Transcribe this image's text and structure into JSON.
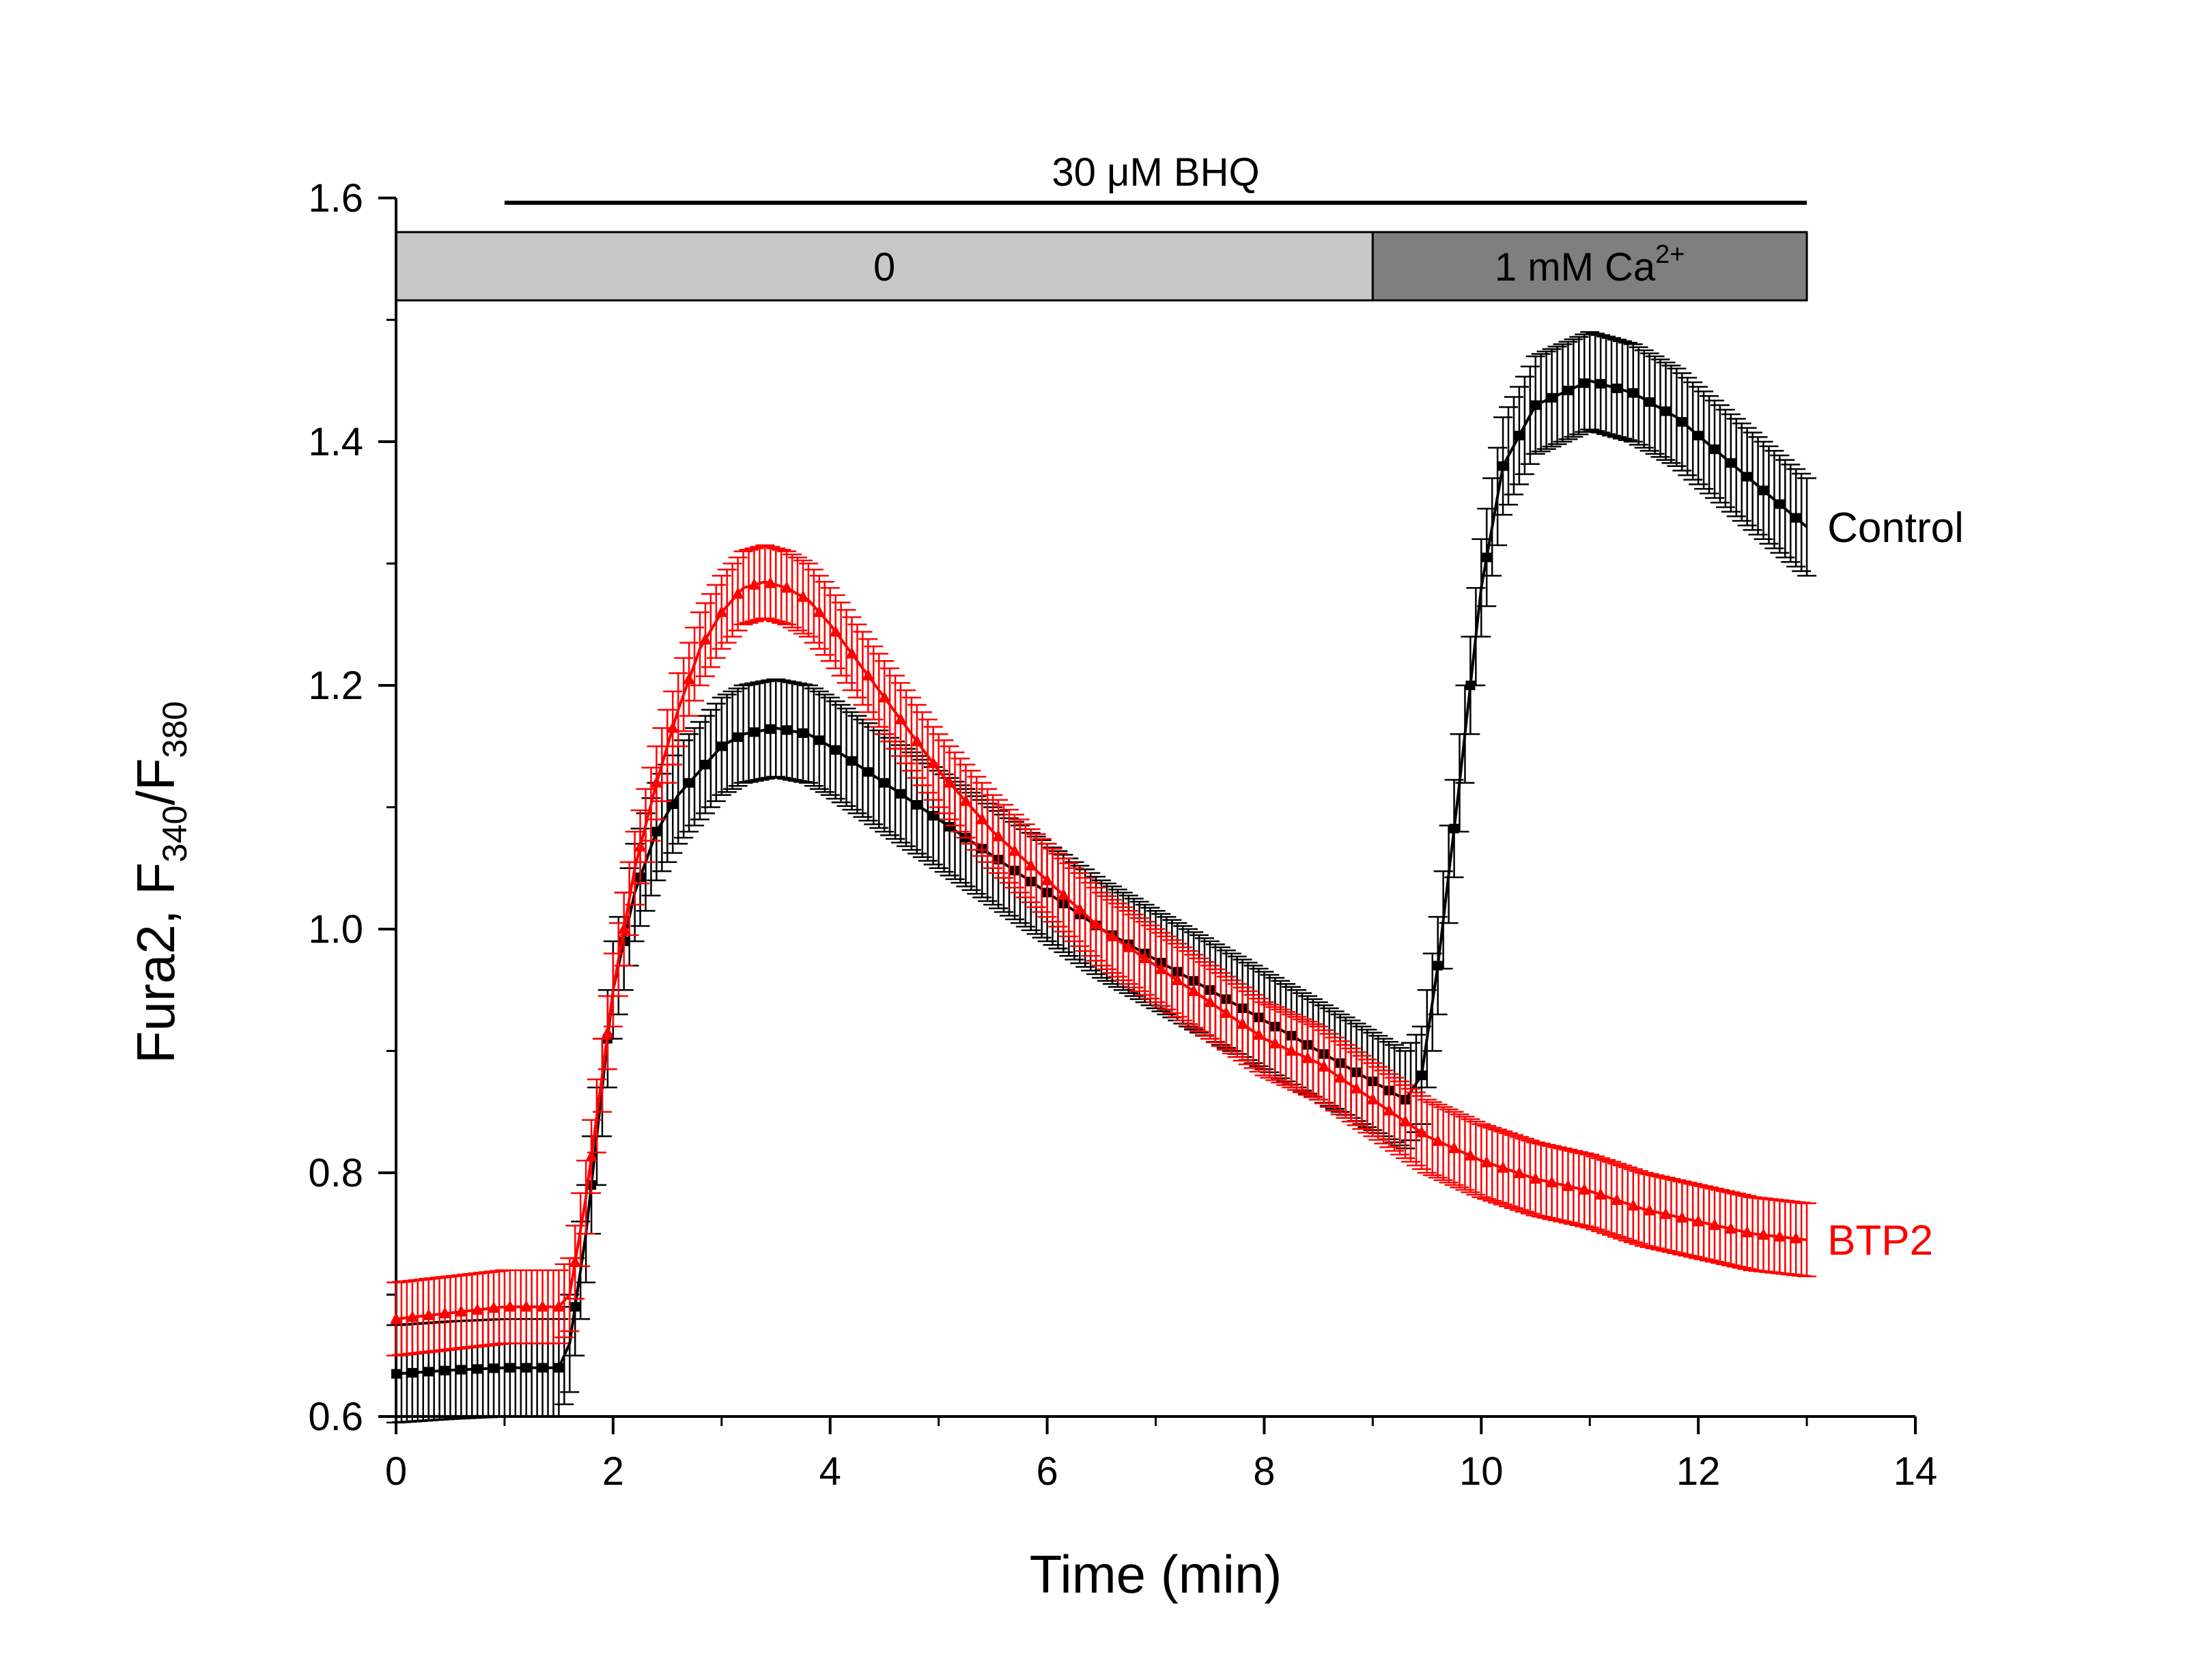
{
  "chart_data": {
    "type": "line",
    "xlabel": "Time (min)",
    "ylabel": {
      "main": "Fura2, F",
      "sub1": "340",
      "mid": "/F",
      "sub2": "380"
    },
    "xlim": [
      0,
      14
    ],
    "ylim": [
      0.6,
      1.6
    ],
    "xticks": [
      "0",
      "2",
      "4",
      "6",
      "8",
      "10",
      "12",
      "14"
    ],
    "yticks": [
      "0.6",
      "0.8",
      "1.0",
      "1.2",
      "1.4",
      "1.6"
    ],
    "grid": false,
    "annotations": {
      "bhq": {
        "label": "30 μM BHQ",
        "x_start": 1,
        "x_end": 13
      },
      "solutions": [
        {
          "label": "0",
          "x_start": 0,
          "x_end": 9,
          "color": "#c8c8c8"
        },
        {
          "label": "1 mM Ca",
          "sup": "2+",
          "x_start": 9,
          "x_end": 13,
          "color": "#7f7f7f"
        }
      ]
    },
    "series": [
      {
        "name": "Control",
        "color": "#000000",
        "marker": "square",
        "anchors": {
          "x": [
            0,
            0.5,
            1.0,
            1.5,
            1.6,
            1.75,
            1.9,
            2.0,
            2.2,
            2.4,
            2.6,
            2.8,
            3.0,
            3.2,
            3.5,
            3.8,
            4.0,
            4.5,
            5.0,
            5.5,
            6.0,
            6.5,
            7.0,
            7.5,
            8.0,
            8.5,
            9.0,
            9.3,
            9.45,
            9.6,
            9.8,
            10.0,
            10.2,
            10.5,
            11.0,
            11.4,
            11.8,
            12.2,
            12.6,
            13.0
          ],
          "y": [
            0.635,
            0.638,
            0.64,
            0.64,
            0.66,
            0.75,
            0.87,
            0.95,
            1.03,
            1.08,
            1.11,
            1.13,
            1.15,
            1.16,
            1.165,
            1.16,
            1.15,
            1.12,
            1.09,
            1.06,
            1.03,
            1.0,
            0.975,
            0.95,
            0.925,
            0.9,
            0.875,
            0.86,
            0.88,
            0.97,
            1.12,
            1.28,
            1.38,
            1.43,
            1.45,
            1.44,
            1.42,
            1.39,
            1.36,
            1.33
          ]
        },
        "error": 0.04
      },
      {
        "name": "BTP2",
        "color": "#ff0000",
        "marker": "triangle",
        "anchors": {
          "x": [
            0,
            0.5,
            1.0,
            1.5,
            1.6,
            1.75,
            1.9,
            2.0,
            2.2,
            2.4,
            2.6,
            2.8,
            3.0,
            3.2,
            3.4,
            3.6,
            3.8,
            4.0,
            4.5,
            5.0,
            5.5,
            6.0,
            6.5,
            7.0,
            7.5,
            8.0,
            8.5,
            9.0,
            9.5,
            10.0,
            10.5,
            11.0,
            11.5,
            12.0,
            12.5,
            13.0
          ],
          "y": [
            0.68,
            0.685,
            0.69,
            0.69,
            0.7,
            0.78,
            0.88,
            0.95,
            1.05,
            1.12,
            1.18,
            1.23,
            1.26,
            1.28,
            1.285,
            1.28,
            1.27,
            1.25,
            1.19,
            1.13,
            1.08,
            1.04,
            1.0,
            0.97,
            0.94,
            0.91,
            0.89,
            0.86,
            0.83,
            0.81,
            0.795,
            0.785,
            0.77,
            0.76,
            0.75,
            0.745
          ]
        },
        "error": 0.03
      }
    ]
  }
}
